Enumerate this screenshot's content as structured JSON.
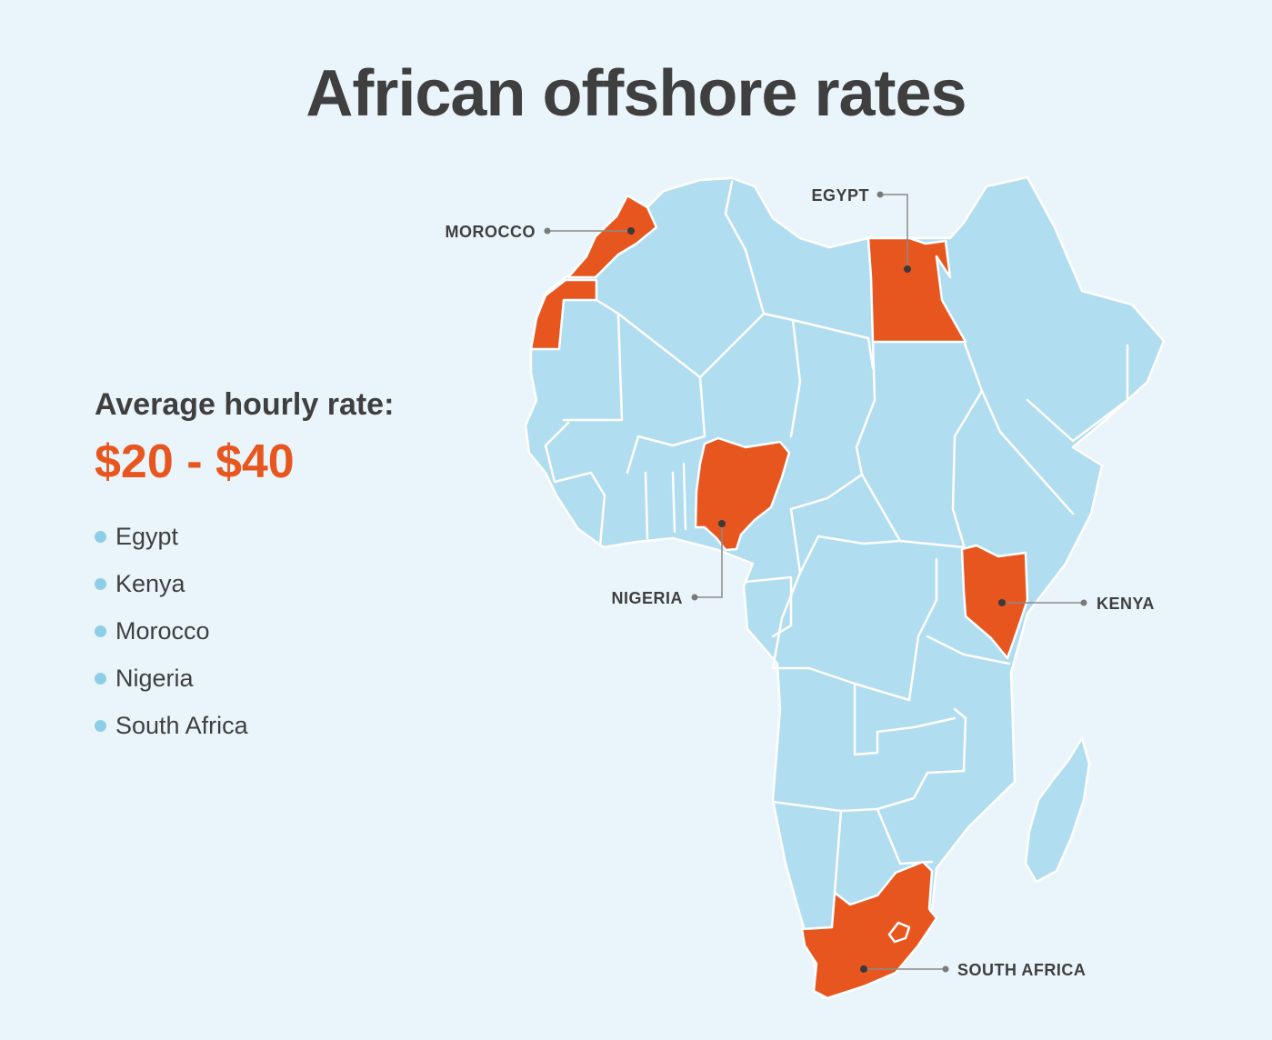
{
  "title": "African offshore rates",
  "rate_label": "Average hourly rate:",
  "rate_value": "$20 - $40",
  "countries": [
    "Egypt",
    "Kenya",
    "Morocco",
    "Nigeria",
    "South Africa"
  ],
  "map_labels": {
    "morocco": "MOROCCO",
    "egypt": "EGYPT",
    "nigeria": "NIGERIA",
    "kenya": "KENYA",
    "south_africa": "SOUTH AFRICA"
  },
  "colors": {
    "background": "#eaf5fb",
    "land": "#b1ddf0",
    "highlight": "#e8561f",
    "text": "#3f3f3f",
    "bullet": "#8ecfe8"
  }
}
